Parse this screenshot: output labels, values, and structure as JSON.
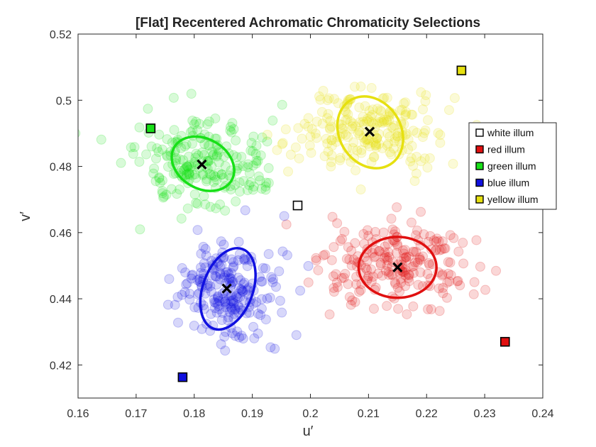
{
  "chart_data": {
    "type": "scatter",
    "title": "[Flat] Recentered Achromatic Chromaticity Selections",
    "xlabel": "u′",
    "ylabel": "v′",
    "xlim": [
      0.16,
      0.24
    ],
    "ylim": [
      0.41,
      0.52
    ],
    "xticks": [
      "0.16",
      "0.17",
      "0.18",
      "0.19",
      "0.2",
      "0.21",
      "0.22",
      "0.23",
      "0.24"
    ],
    "yticks": [
      "0.42",
      "0.44",
      "0.46",
      "0.48",
      "0.5",
      "0.52"
    ],
    "grid": false,
    "legend_position": "right",
    "legend": [
      "white illum",
      "red illum",
      "green illum",
      "blue illum",
      "yellow illum"
    ],
    "series": [
      {
        "name": "red illum",
        "color": "#e01010",
        "cluster": {
          "mean": [
            0.215,
            0.4495
          ],
          "sd": [
            0.0065,
            0.0068
          ],
          "n": 220
        },
        "ellipse": {
          "center": [
            0.215,
            0.4495
          ],
          "rx": 0.0067,
          "ry": 0.0092,
          "rotation_deg": 0
        },
        "mean_marker": [
          0.215,
          0.4495
        ],
        "illuminant": [
          0.2335,
          0.427
        ]
      },
      {
        "name": "green illum",
        "color": "#18e018",
        "cluster": {
          "mean": [
            0.1815,
            0.4805
          ],
          "sd": [
            0.0055,
            0.0065
          ],
          "n": 220
        },
        "ellipse": {
          "center": [
            0.1815,
            0.4808
          ],
          "rx": 0.0057,
          "ry": 0.0075,
          "rotation_deg": 30
        },
        "mean_marker": [
          0.1813,
          0.4806
        ],
        "illuminant": [
          0.1725,
          0.4915
        ]
      },
      {
        "name": "blue illum",
        "color": "#1010e0",
        "cluster": {
          "mean": [
            0.1855,
            0.443
          ],
          "sd": [
            0.0045,
            0.0075
          ],
          "n": 220
        },
        "ellipse": {
          "center": [
            0.1858,
            0.443
          ],
          "rx": 0.0043,
          "ry": 0.0128,
          "rotation_deg": 20
        },
        "mean_marker": [
          0.1856,
          0.4431
        ],
        "illuminant": [
          0.178,
          0.4163
        ]
      },
      {
        "name": "yellow illum",
        "color": "#e6e010",
        "cluster": {
          "mean": [
            0.21,
            0.4905
          ],
          "sd": [
            0.006,
            0.006
          ],
          "n": 220
        },
        "ellipse": {
          "center": [
            0.2103,
            0.4903
          ],
          "rx": 0.0065,
          "ry": 0.0093,
          "rotation_deg": 58
        },
        "mean_marker": [
          0.2102,
          0.4905
        ],
        "illuminant": [
          0.226,
          0.509
        ]
      },
      {
        "name": "white illum",
        "color": "#ffffff",
        "illuminant": [
          0.1978,
          0.4682
        ]
      }
    ]
  }
}
